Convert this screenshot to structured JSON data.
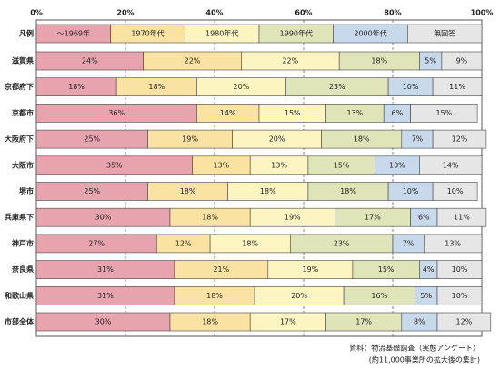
{
  "chart_data": {
    "type": "stacked-bar-horizontal",
    "legend_label": "凡例",
    "categories": [
      "滋賀県",
      "京都府下",
      "京都市",
      "大阪府下",
      "大阪市",
      "堺市",
      "兵庫県下",
      "神戸市",
      "奈良県",
      "和歌山県",
      "市部全体"
    ],
    "series": [
      {
        "name": "～1969年",
        "color": "#e8a4ae",
        "values": [
          24,
          18,
          36,
          25,
          35,
          25,
          30,
          27,
          31,
          31,
          30
        ],
        "value_labels": [
          "24%",
          "18%",
          "36%",
          "25%",
          "35%",
          "25%",
          "30%",
          "27%",
          "31%",
          "31%",
          "30%"
        ]
      },
      {
        "name": "1970年代",
        "color": "#fae3a2",
        "values": [
          22,
          18,
          14,
          19,
          13,
          18,
          18,
          12,
          21,
          18,
          18
        ],
        "value_labels": [
          "22%",
          "18%",
          "14%",
          "19%",
          "13%",
          "18%",
          "18%",
          "12%",
          "21%",
          "18%",
          "18%"
        ]
      },
      {
        "name": "1980年代",
        "color": "#fcf5c2",
        "values": [
          22,
          20,
          15,
          20,
          13,
          18,
          19,
          18,
          19,
          20,
          17
        ],
        "value_labels": [
          "22%",
          "20%",
          "15%",
          "20%",
          "13%",
          "18%",
          "19%",
          "18%",
          "19%",
          "20%",
          "17%"
        ]
      },
      {
        "name": "1990年代",
        "color": "#dfe5b9",
        "values": [
          18,
          23,
          13,
          18,
          15,
          18,
          17,
          23,
          15,
          16,
          17
        ],
        "value_labels": [
          "18%",
          "23%",
          "13%",
          "18%",
          "15%",
          "18%",
          "17%",
          "23%",
          "15%",
          "16%",
          "17%"
        ]
      },
      {
        "name": "2000年代",
        "color": "#c9d9ec",
        "values": [
          5,
          10,
          6,
          7,
          10,
          10,
          6,
          7,
          4,
          5,
          8
        ],
        "value_labels": [
          "5%",
          "10%",
          "6%",
          "7%",
          "10%",
          "10%",
          "6%",
          "7%",
          "4%",
          "5%",
          "8%"
        ]
      },
      {
        "name": "無回答",
        "color": "#e6e6e6",
        "values": [
          9,
          11,
          15,
          12,
          14,
          10,
          11,
          13,
          10,
          10,
          12
        ],
        "value_labels": [
          "9%",
          "11%",
          "15%",
          "12%",
          "14%",
          "10%",
          "11%",
          "13%",
          "10%",
          "10%",
          "12%"
        ]
      }
    ],
    "xlim": [
      0,
      100
    ],
    "xticks": [
      {
        "value": 0,
        "label": "0%"
      },
      {
        "value": 20,
        "label": "20%"
      },
      {
        "value": 40,
        "label": "40%"
      },
      {
        "value": 60,
        "label": "60%"
      },
      {
        "value": 80,
        "label": "80%"
      },
      {
        "value": 100,
        "label": "100%"
      }
    ],
    "grid": true,
    "source": [
      "資料：物流基礎調査（実態アンケート）",
      "(約11,000事業所の拡大後の集計)"
    ]
  }
}
